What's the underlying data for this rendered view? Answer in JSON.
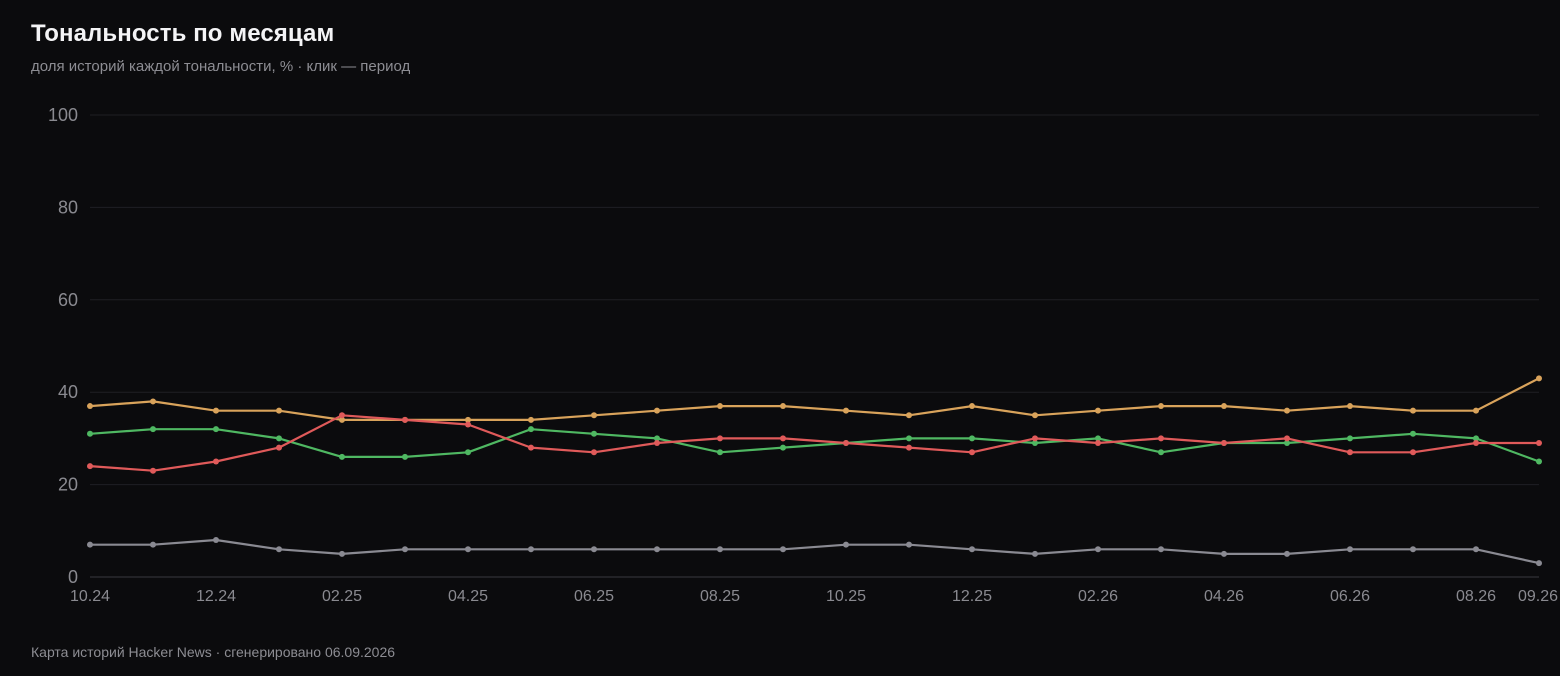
{
  "header": {
    "title": "Тональность по месяцам",
    "subtitle": "доля историй каждой тональности, % · клик — период"
  },
  "footer": {
    "text": "Карта историй Hacker News · сгенерировано 06.09.2026"
  },
  "chart_data": {
    "type": "line",
    "title": "Тональность по месяцам",
    "subtitle": "доля историй каждой тональности, % · клик — период",
    "xlabel": "",
    "ylabel": "",
    "ylim": [
      0,
      100
    ],
    "yticks": [
      0,
      20,
      40,
      60,
      80,
      100
    ],
    "grid": true,
    "legend": "none",
    "categories": [
      "10.24",
      "11.24",
      "12.24",
      "01.25",
      "02.25",
      "03.25",
      "04.25",
      "05.25",
      "06.25",
      "07.25",
      "08.25",
      "09.25",
      "10.25",
      "11.25",
      "12.25",
      "01.26",
      "02.26",
      "03.26",
      "04.26",
      "05.26",
      "06.26",
      "07.26",
      "08.26",
      "09.26"
    ],
    "xtick_labels": [
      "10.24",
      "12.24",
      "02.25",
      "04.25",
      "06.25",
      "08.25",
      "10.25",
      "12.25",
      "02.26",
      "04.26",
      "06.26",
      "08.26",
      "09.26"
    ],
    "series": [
      {
        "color": "#d9a35b",
        "values": [
          37,
          38,
          36,
          36,
          34,
          34,
          34,
          34,
          35,
          36,
          37,
          37,
          36,
          35,
          37,
          35,
          36,
          37,
          37,
          36,
          37,
          36,
          36,
          43
        ]
      },
      {
        "color": "#4fb862",
        "values": [
          31,
          32,
          32,
          30,
          26,
          26,
          27,
          32,
          31,
          30,
          27,
          28,
          29,
          30,
          30,
          29,
          30,
          27,
          29,
          29,
          30,
          31,
          30,
          25
        ]
      },
      {
        "color": "#e05a5a",
        "values": [
          24,
          23,
          25,
          28,
          35,
          34,
          33,
          28,
          27,
          29,
          30,
          30,
          29,
          28,
          27,
          30,
          29,
          30,
          29,
          30,
          27,
          27,
          29,
          29
        ]
      },
      {
        "color": "#8a8a92",
        "values": [
          7,
          7,
          8,
          6,
          5,
          6,
          6,
          6,
          6,
          6,
          6,
          6,
          7,
          7,
          6,
          5,
          6,
          6,
          5,
          5,
          6,
          6,
          6,
          3
        ]
      }
    ]
  }
}
